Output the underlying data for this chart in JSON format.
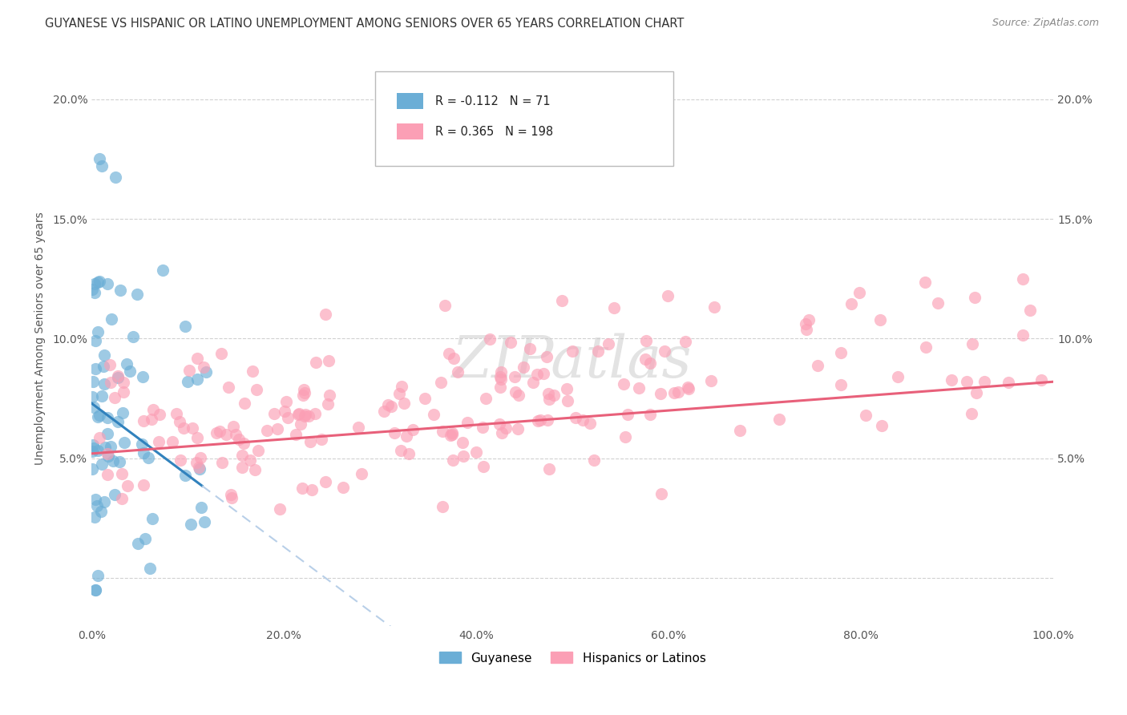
{
  "title": "GUYANESE VS HISPANIC OR LATINO UNEMPLOYMENT AMONG SENIORS OVER 65 YEARS CORRELATION CHART",
  "source": "Source: ZipAtlas.com",
  "ylabel": "Unemployment Among Seniors over 65 years",
  "xlim": [
    0.0,
    1.0
  ],
  "ylim": [
    -0.02,
    0.22
  ],
  "xtick_vals": [
    0.0,
    0.2,
    0.4,
    0.6,
    0.8,
    1.0
  ],
  "ytick_vals": [
    0.0,
    0.05,
    0.1,
    0.15,
    0.2
  ],
  "legend_1_label": "Guyanese",
  "legend_2_label": "Hispanics or Latinos",
  "r1": -0.112,
  "n1": 71,
  "r2": 0.365,
  "n2": 198,
  "color_guyanese": "#6baed6",
  "color_hispanic": "#fb9fb5",
  "color_trend1": "#3182bd",
  "color_trend2": "#e8607a",
  "color_trend1_ext": "#b8cfe8"
}
